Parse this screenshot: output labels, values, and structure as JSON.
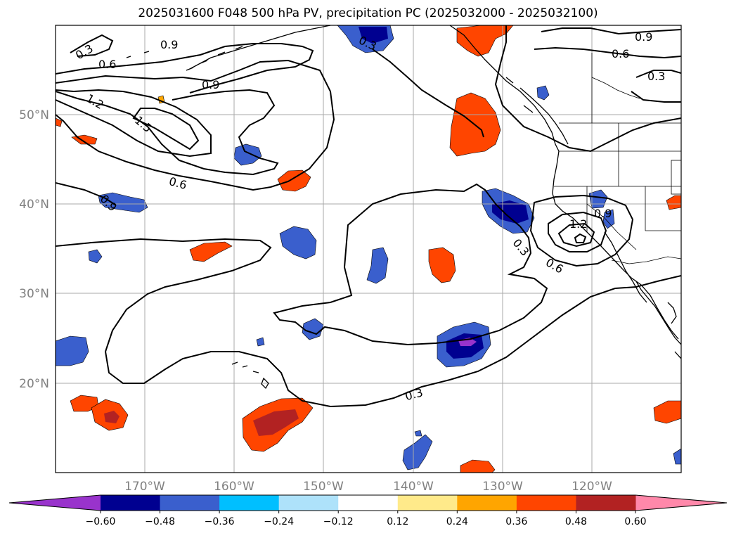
{
  "title": "2025031600 F048 500 hPa PV, precipitation PC (2025032000 - 2025032100)",
  "map": {
    "lon_range": [
      -180,
      -110
    ],
    "lat_range": [
      10,
      60
    ],
    "longitude_labels": [
      "170°W",
      "160°W",
      "150°W",
      "140°W",
      "130°W",
      "120°W"
    ],
    "latitude_labels": [
      "50°N",
      "40°N",
      "30°N",
      "20°N"
    ],
    "gridlines": true,
    "contour_field": "500 hPa PV",
    "contour_labels": [
      "0.3",
      "0.9",
      "0.6",
      "0.9",
      "1.2",
      "1.5",
      "0.6",
      "0.9",
      "0.3",
      "0.9",
      "0.6",
      "0.3",
      "0.9",
      "1.2",
      "0.3",
      "0.6",
      "0.3"
    ],
    "shaded_field": "precipitation PC"
  },
  "colorbar": {
    "tick_labels": [
      "−0.60",
      "−0.48",
      "−0.36",
      "−0.24",
      "−0.12",
      "0.12",
      "0.24",
      "0.36",
      "0.48",
      "0.60"
    ],
    "colors": [
      "#9933cc",
      "#000090",
      "#3a5fcd",
      "#00bfff",
      "#aee2fa",
      "#ffffff",
      "#ffea8a",
      "#ffa500",
      "#ff4500",
      "#b22222",
      "#ff88aa"
    ],
    "extend": "both"
  }
}
